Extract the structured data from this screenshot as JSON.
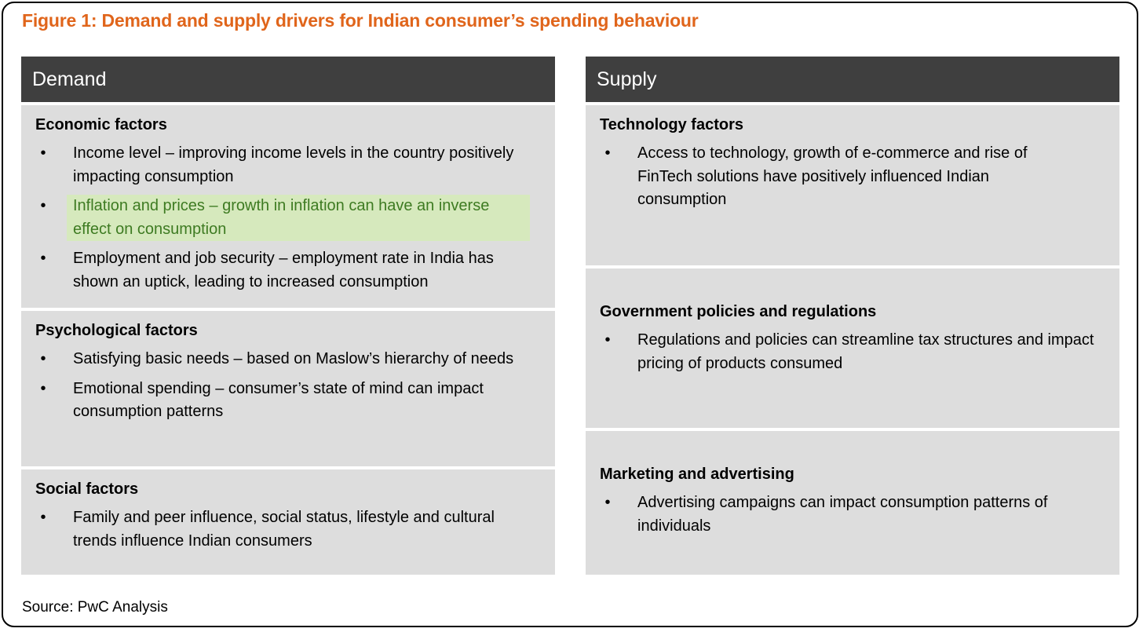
{
  "title": "Figure 1: Demand and supply drivers for Indian consumer’s spending behaviour",
  "colors": {
    "title": "#e0651b",
    "header_bg": "#3f3f3f",
    "panel_bg": "#dddddd",
    "highlight_bg": "#d6e9bd",
    "highlight_text": "#3e7b22"
  },
  "demand": {
    "header": "Demand",
    "sections": [
      {
        "title": "Economic factors",
        "bullets": [
          "Income level – improving income levels in the country positively impacting consumption",
          "Inflation and prices – growth in inflation can have an inverse effect on consumption",
          "Employment and job security – employment rate in India has shown an uptick, leading to increased consumption"
        ]
      },
      {
        "title": "Psychological factors",
        "bullets": [
          "Satisfying basic needs – based on Maslow’s hierarchy of needs",
          "Emotional spending – consumer’s state of mind can impact consumption patterns"
        ]
      },
      {
        "title": "Social factors",
        "bullets": [
          "Family and peer influence, social status, lifestyle and cultural trends influence Indian consumers"
        ]
      }
    ]
  },
  "supply": {
    "header": "Supply",
    "sections": [
      {
        "title": "Technology factors",
        "bullets": [
          "Access to technology, growth of e-commerce and rise of FinTech solutions have positively influenced Indian consumption"
        ]
      },
      {
        "title": "Government policies and regulations",
        "bullets": [
          "Regulations and policies can streamline tax structures and impact pricing of products consumed"
        ]
      },
      {
        "title": "Marketing and advertising",
        "bullets": [
          "Advertising campaigns can impact consumption patterns of individuals"
        ]
      }
    ]
  },
  "bullet_glyph": "•",
  "source": "Source: PwC Analysis"
}
